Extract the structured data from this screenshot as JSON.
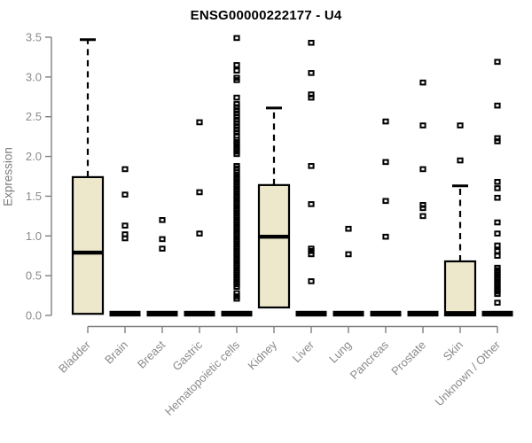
{
  "title": "ENSG00000222177 - U4",
  "chart_data": {
    "type": "boxplot",
    "title": "ENSG00000222177 - U4",
    "ylabel": "Expression",
    "xlabel": "",
    "ylim": [
      0,
      3.5
    ],
    "yticks": [
      "0.0",
      "0.5",
      "1.0",
      "1.5",
      "2.0",
      "2.5",
      "3.0",
      "3.5"
    ],
    "grid": false,
    "legend": "none",
    "colors": {
      "box_fill": "#EDE8CC",
      "box_border": "#000000",
      "median": "#000000",
      "whisker": "#000000",
      "outlier": "#000000",
      "axis": "#808080",
      "tick_label": "#8a8a8a",
      "title": "#000000",
      "background": "#ffffff"
    },
    "categories": [
      "Bladder",
      "Brain",
      "Breast",
      "Gastric",
      "Hematopoietic cells",
      "Kidney",
      "Liver",
      "Lung",
      "Pancreas",
      "Prostate",
      "Skin",
      "Unknown / Other"
    ],
    "boxes": [
      {
        "category": "Bladder",
        "collapsed": false,
        "q1": 0.02,
        "median": 0.79,
        "q3": 1.74,
        "whisker_low": 0.02,
        "whisker_high": 3.47,
        "outliers": []
      },
      {
        "category": "Brain",
        "collapsed": true,
        "q1": 0,
        "median": 0,
        "q3": 0,
        "whisker_low": 0,
        "whisker_high": 0,
        "outliers": [
          1.84,
          1.52,
          1.13,
          1.02,
          0.97
        ]
      },
      {
        "category": "Breast",
        "collapsed": true,
        "q1": 0,
        "median": 0,
        "q3": 0,
        "whisker_low": 0,
        "whisker_high": 0,
        "outliers": [
          1.2,
          0.96,
          0.84
        ]
      },
      {
        "category": "Gastric",
        "collapsed": true,
        "q1": 0,
        "median": 0,
        "q3": 0,
        "whisker_low": 0,
        "whisker_high": 0,
        "outliers": [
          2.43,
          1.55,
          1.03
        ]
      },
      {
        "category": "Hematopoietic cells",
        "collapsed": true,
        "q1": 0,
        "median": 0,
        "q3": 0,
        "whisker_low": 0,
        "whisker_high": 0,
        "outliers": [
          3.49,
          3.15,
          3.08,
          2.99,
          2.96,
          2.74,
          2.66,
          2.62,
          2.58,
          2.54,
          2.5,
          2.46,
          2.42,
          2.38,
          2.34,
          2.3,
          2.26,
          2.21,
          2.18,
          2.15,
          2.12,
          2.09,
          2.06,
          2.03,
          1.88,
          1.85,
          1.8,
          1.77,
          1.74,
          1.71,
          1.68,
          1.65,
          1.62,
          1.59,
          1.56,
          1.53,
          1.5,
          1.47,
          1.44,
          1.41,
          1.38,
          1.35,
          1.32,
          1.29,
          1.26,
          1.23,
          1.2,
          1.17,
          1.14,
          1.11,
          1.08,
          1.05,
          1.02,
          0.99,
          0.96,
          0.93,
          0.9,
          0.87,
          0.84,
          0.81,
          0.78,
          0.75,
          0.72,
          0.69,
          0.66,
          0.63,
          0.6,
          0.57,
          0.54,
          0.51,
          0.48,
          0.45,
          0.42,
          0.39,
          0.36,
          0.28,
          0.24,
          0.21
        ]
      },
      {
        "category": "Kidney",
        "collapsed": false,
        "q1": 0.1,
        "median": 0.99,
        "q3": 1.64,
        "whisker_low": 0.1,
        "whisker_high": 2.61,
        "outliers": []
      },
      {
        "category": "Liver",
        "collapsed": true,
        "q1": 0,
        "median": 0,
        "q3": 0,
        "whisker_low": 0,
        "whisker_high": 0,
        "outliers": [
          3.43,
          3.05,
          2.78,
          2.74,
          1.88,
          1.4,
          0.84,
          0.81,
          0.77,
          0.43
        ]
      },
      {
        "category": "Lung",
        "collapsed": true,
        "q1": 0,
        "median": 0,
        "q3": 0,
        "whisker_low": 0,
        "whisker_high": 0,
        "outliers": [
          1.09,
          0.77
        ]
      },
      {
        "category": "Pancreas",
        "collapsed": true,
        "q1": 0,
        "median": 0,
        "q3": 0,
        "whisker_low": 0,
        "whisker_high": 0,
        "outliers": [
          2.44,
          1.93,
          1.44,
          0.99
        ]
      },
      {
        "category": "Prostate",
        "collapsed": true,
        "q1": 0,
        "median": 0,
        "q3": 0,
        "whisker_low": 0,
        "whisker_high": 0,
        "outliers": [
          2.93,
          2.39,
          1.84,
          1.39,
          1.35,
          1.25
        ]
      },
      {
        "category": "Skin",
        "collapsed": false,
        "q1": 0.0,
        "median": 0.03,
        "q3": 0.68,
        "whisker_low": 0.0,
        "whisker_high": 1.63,
        "outliers": [
          2.39,
          1.95
        ]
      },
      {
        "category": "Unknown / Other",
        "collapsed": true,
        "q1": 0,
        "median": 0,
        "q3": 0,
        "whisker_low": 0,
        "whisker_high": 0,
        "outliers": [
          3.19,
          2.64,
          2.23,
          2.19,
          1.68,
          1.6,
          1.48,
          1.17,
          1.03,
          0.88,
          0.81,
          0.75,
          0.6,
          0.57,
          0.54,
          0.51,
          0.48,
          0.45,
          0.42,
          0.39,
          0.36,
          0.33,
          0.3,
          0.27,
          0.16
        ]
      }
    ]
  }
}
